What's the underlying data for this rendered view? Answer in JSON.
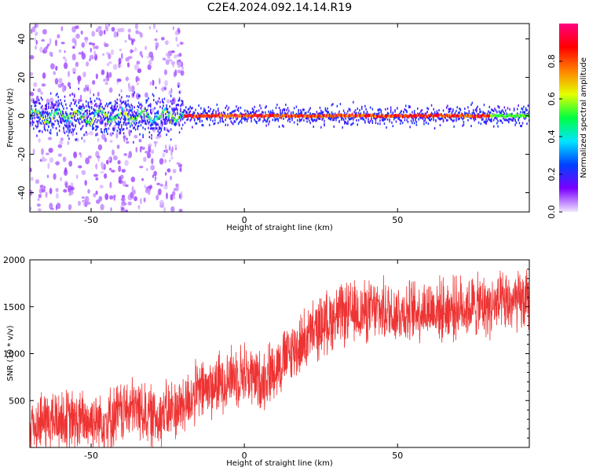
{
  "title": "C2E4.2024.092.14.14.R19",
  "chart_data": [
    {
      "type": "heatmap",
      "xlabel": "Height of straight line (km)",
      "ylabel": "Frequency (Hz)",
      "xlim": [
        -70,
        93
      ],
      "ylim": [
        -50,
        48
      ],
      "xticks": [
        -50,
        0,
        50
      ],
      "yticks": [
        -40,
        -20,
        0,
        20,
        40
      ],
      "colorbar": {
        "label": "Normalized spectral amplitude",
        "range": [
          0,
          1
        ],
        "ticks": [
          "0.0",
          "0.2",
          "0.4",
          "0.6",
          "0.8"
        ],
        "tick_values": [
          0.0,
          0.2,
          0.4,
          0.6,
          0.8
        ],
        "colors": [
          "#f0e6ff",
          "#7b00ff",
          "#0040ff",
          "#00e5ff",
          "#00ff40",
          "#e5ff00",
          "#ff8000",
          "#ff0000",
          "#ff0080"
        ]
      },
      "ridge": {
        "center_frequency": 0,
        "noisy_segment_x": [
          -70,
          -20
        ],
        "clean_segment_x": [
          -20,
          93
        ],
        "peak_amplitude": 0.95
      }
    },
    {
      "type": "line",
      "xlabel": "Height of straight line (km)",
      "ylabel": "SNR (10 * v/v)",
      "xlim": [
        -70,
        93
      ],
      "ylim": [
        0,
        2000
      ],
      "xticks": [
        -50,
        0,
        50
      ],
      "yticks": [
        500,
        1000,
        1500,
        2000
      ],
      "color": "#ee3333",
      "x": [
        -70,
        -65,
        -60,
        -55,
        -50,
        -45,
        -40,
        -35,
        -30,
        -25,
        -20,
        -15,
        -10,
        -5,
        0,
        5,
        10,
        15,
        20,
        25,
        30,
        35,
        40,
        45,
        50,
        55,
        60,
        65,
        70,
        75,
        80,
        85,
        90,
        93
      ],
      "y": [
        250,
        280,
        300,
        270,
        290,
        300,
        380,
        420,
        320,
        380,
        450,
        600,
        650,
        750,
        800,
        700,
        850,
        1000,
        1150,
        1300,
        1400,
        1430,
        1450,
        1460,
        1440,
        1450,
        1480,
        1470,
        1490,
        1510,
        1500,
        1530,
        1550,
        1560
      ],
      "noise_band": [
        -300,
        300
      ]
    }
  ]
}
